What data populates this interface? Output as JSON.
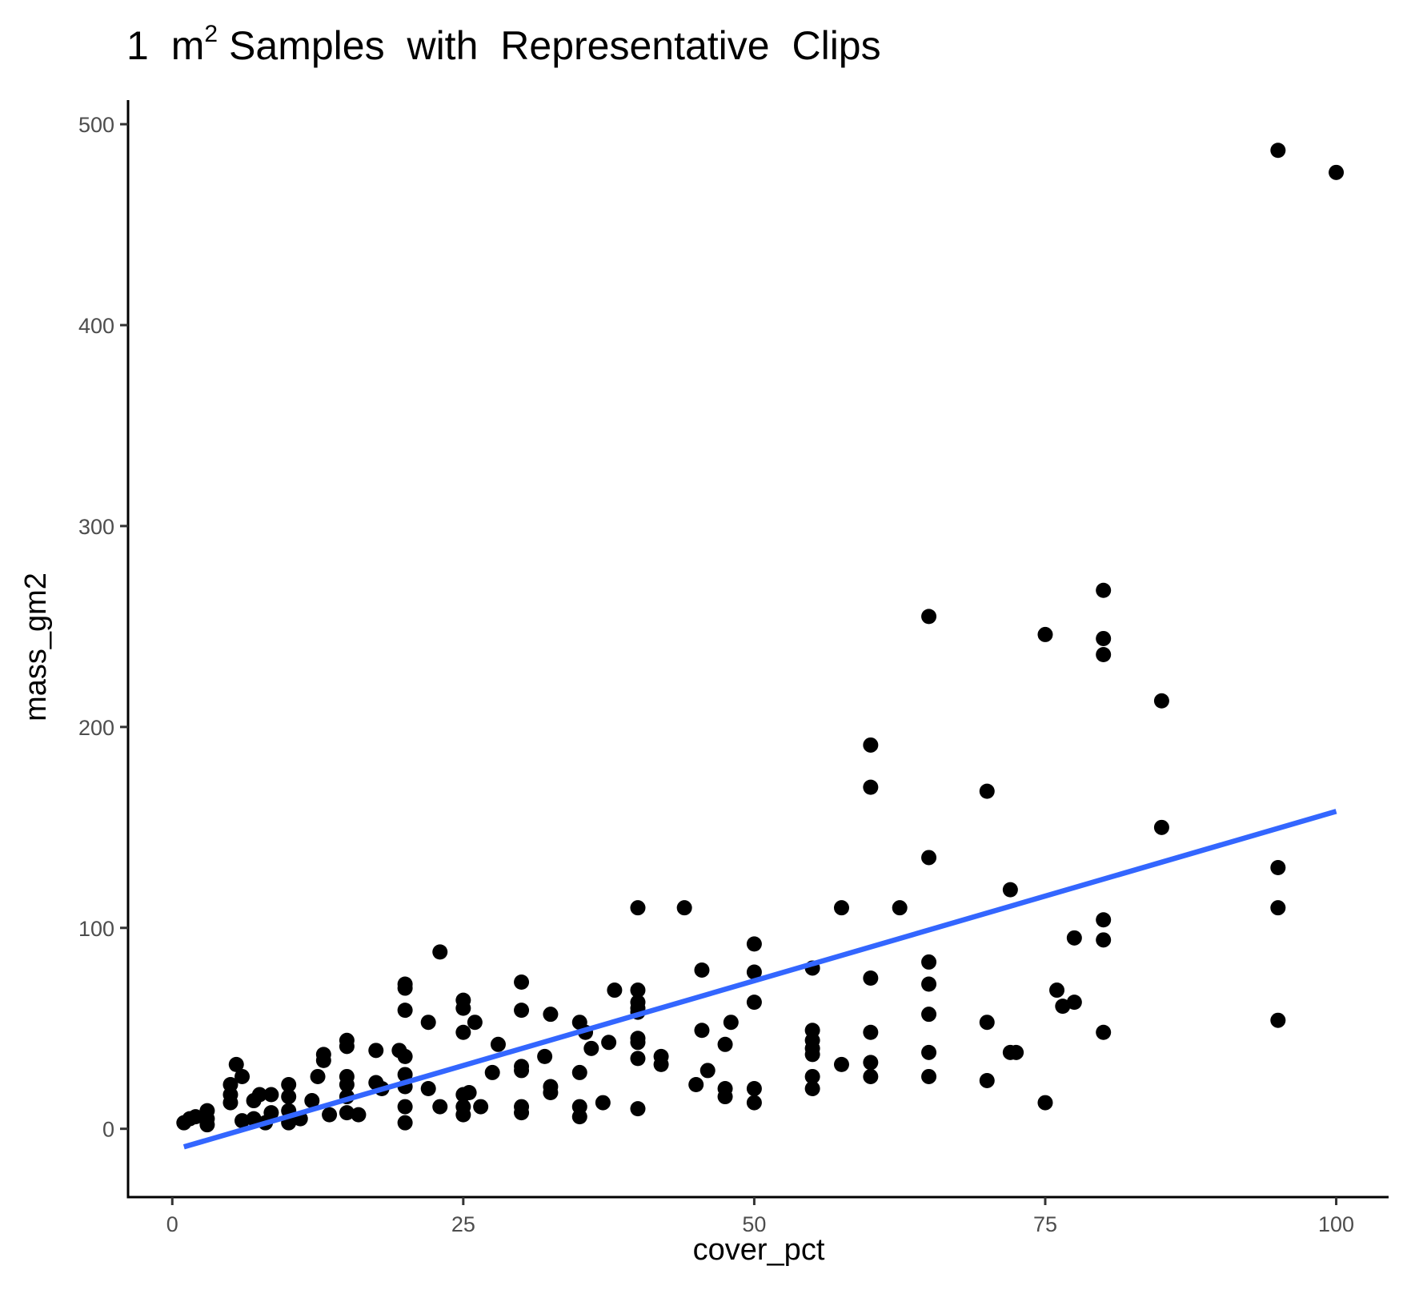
{
  "chart_data": {
    "type": "scatter",
    "title": "1 m",
    "title_superscript": "2",
    "title_suffix": "Samples with Representative Clips",
    "xlabel": "cover_pct",
    "ylabel": "mass_gm2",
    "xlim": [
      -3.8,
      104.5
    ],
    "ylim": [
      -34,
      512
    ],
    "xticks": [
      0,
      25,
      50,
      75,
      100
    ],
    "yticks": [
      0,
      100,
      200,
      300,
      400,
      500
    ],
    "grid": false,
    "colors": {
      "points": "#000000",
      "trend": "#3366ff",
      "axis": "#000000",
      "tick_label": "#4d4d4d"
    },
    "trend_line": {
      "x": [
        1,
        100
      ],
      "y": [
        -9,
        158
      ]
    },
    "points": [
      [
        1,
        3
      ],
      [
        1.5,
        5
      ],
      [
        2,
        6
      ],
      [
        3,
        2
      ],
      [
        3,
        5
      ],
      [
        3,
        9
      ],
      [
        5,
        13
      ],
      [
        5,
        17
      ],
      [
        5,
        22
      ],
      [
        5.5,
        32
      ],
      [
        6,
        4
      ],
      [
        6,
        26
      ],
      [
        7,
        5
      ],
      [
        7,
        14
      ],
      [
        7.5,
        17
      ],
      [
        8,
        3
      ],
      [
        8.5,
        17
      ],
      [
        8.5,
        8
      ],
      [
        10,
        3
      ],
      [
        10,
        9
      ],
      [
        10,
        16
      ],
      [
        10,
        22
      ],
      [
        11,
        5
      ],
      [
        12,
        14
      ],
      [
        12.5,
        26
      ],
      [
        13,
        34
      ],
      [
        13,
        37
      ],
      [
        13.5,
        7
      ],
      [
        15,
        8
      ],
      [
        15,
        16
      ],
      [
        15,
        22
      ],
      [
        15,
        26
      ],
      [
        15,
        41
      ],
      [
        15,
        44
      ],
      [
        16,
        7
      ],
      [
        17.5,
        23
      ],
      [
        17.5,
        39
      ],
      [
        18,
        20
      ],
      [
        19.5,
        39
      ],
      [
        20,
        3
      ],
      [
        20,
        11
      ],
      [
        20,
        21
      ],
      [
        20,
        27
      ],
      [
        20,
        36
      ],
      [
        20,
        59
      ],
      [
        20,
        70
      ],
      [
        20,
        72
      ],
      [
        22,
        20
      ],
      [
        22,
        53
      ],
      [
        23,
        11
      ],
      [
        23,
        88
      ],
      [
        25,
        7
      ],
      [
        25,
        11
      ],
      [
        25,
        17
      ],
      [
        25,
        48
      ],
      [
        25,
        60
      ],
      [
        25,
        64
      ],
      [
        25.5,
        18
      ],
      [
        26,
        53
      ],
      [
        26.5,
        11
      ],
      [
        27.5,
        28
      ],
      [
        28,
        42
      ],
      [
        30,
        8
      ],
      [
        30,
        11
      ],
      [
        30,
        29
      ],
      [
        30,
        31
      ],
      [
        30,
        59
      ],
      [
        30,
        73
      ],
      [
        32,
        36
      ],
      [
        32.5,
        18
      ],
      [
        32.5,
        21
      ],
      [
        32.5,
        57
      ],
      [
        35,
        6
      ],
      [
        35,
        11
      ],
      [
        35,
        28
      ],
      [
        35,
        53
      ],
      [
        35.5,
        48
      ],
      [
        36,
        40
      ],
      [
        37,
        13
      ],
      [
        37.5,
        43
      ],
      [
        38,
        69
      ],
      [
        40,
        10
      ],
      [
        40,
        35
      ],
      [
        40,
        43
      ],
      [
        40,
        45
      ],
      [
        40,
        58
      ],
      [
        40,
        60
      ],
      [
        40,
        63
      ],
      [
        40,
        69
      ],
      [
        40,
        110
      ],
      [
        42,
        32
      ],
      [
        42,
        36
      ],
      [
        44,
        110
      ],
      [
        45,
        22
      ],
      [
        45.5,
        49
      ],
      [
        45.5,
        79
      ],
      [
        46,
        29
      ],
      [
        47.5,
        16
      ],
      [
        47.5,
        20
      ],
      [
        47.5,
        42
      ],
      [
        48,
        53
      ],
      [
        50,
        13
      ],
      [
        50,
        20
      ],
      [
        50,
        63
      ],
      [
        50,
        78
      ],
      [
        50,
        92
      ],
      [
        55,
        20
      ],
      [
        55,
        26
      ],
      [
        55,
        37
      ],
      [
        55,
        40
      ],
      [
        55,
        44
      ],
      [
        55,
        49
      ],
      [
        55,
        80
      ],
      [
        57.5,
        32
      ],
      [
        57.5,
        110
      ],
      [
        60,
        26
      ],
      [
        60,
        33
      ],
      [
        60,
        48
      ],
      [
        60,
        75
      ],
      [
        60,
        170
      ],
      [
        60,
        191
      ],
      [
        62.5,
        110
      ],
      [
        65,
        26
      ],
      [
        65,
        38
      ],
      [
        65,
        57
      ],
      [
        65,
        72
      ],
      [
        65,
        83
      ],
      [
        65,
        135
      ],
      [
        65,
        255
      ],
      [
        70,
        24
      ],
      [
        70,
        53
      ],
      [
        70,
        168
      ],
      [
        72,
        38
      ],
      [
        72,
        119
      ],
      [
        72.5,
        38
      ],
      [
        75,
        13
      ],
      [
        75,
        246
      ],
      [
        76,
        69
      ],
      [
        76.5,
        61
      ],
      [
        77.5,
        63
      ],
      [
        77.5,
        95
      ],
      [
        80,
        48
      ],
      [
        80,
        94
      ],
      [
        80,
        104
      ],
      [
        80,
        236
      ],
      [
        80,
        244
      ],
      [
        80,
        268
      ],
      [
        85,
        150
      ],
      [
        85,
        213
      ],
      [
        95,
        54
      ],
      [
        95,
        110
      ],
      [
        95,
        130
      ],
      [
        95,
        487
      ],
      [
        100,
        476
      ]
    ]
  }
}
